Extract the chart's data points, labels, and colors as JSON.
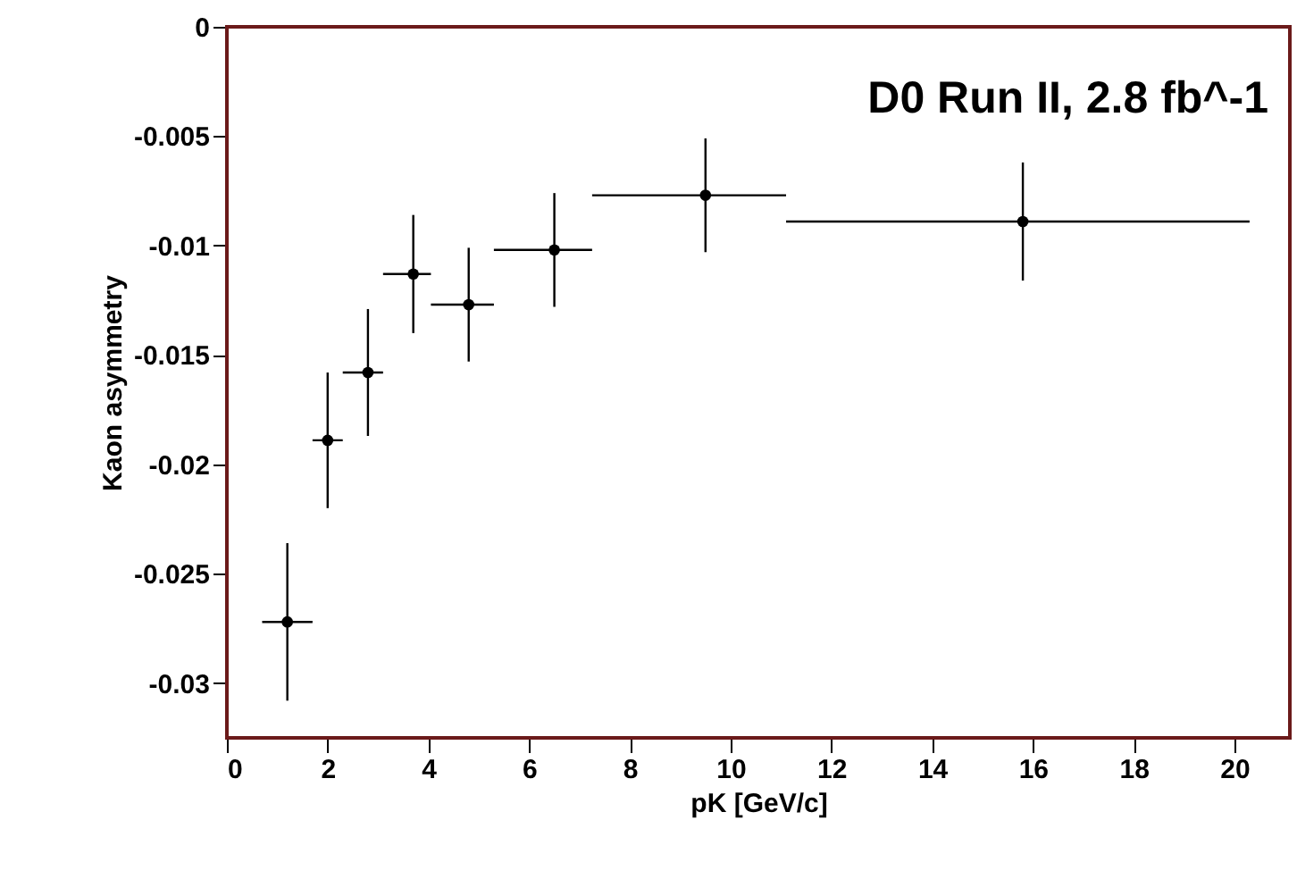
{
  "chart_data": {
    "type": "scatter",
    "xlabel": "pK  [GeV/c]",
    "ylabel": "Kaon asymmetry",
    "annotations": [
      "D0 Run II, 2.8 fb^-1"
    ],
    "x": [
      1.2,
      2.0,
      2.8,
      3.7,
      4.8,
      6.5,
      9.5,
      15.8
    ],
    "series": [
      {
        "color": "#000000",
        "values": [
          -0.0272,
          -0.0189,
          -0.0158,
          -0.0113,
          -0.0127,
          -0.0102,
          -0.0077,
          -0.0089
        ],
        "errors": [
          0.0036,
          0.0031,
          0.0029,
          0.0027,
          0.0026,
          0.0026,
          0.0026,
          0.0027
        ],
        "xerrors": [
          [
            0.7,
            1.7
          ],
          [
            1.7,
            2.3
          ],
          [
            2.3,
            3.1
          ],
          [
            3.1,
            4.05
          ],
          [
            4.05,
            5.3
          ],
          [
            5.3,
            7.25
          ],
          [
            7.25,
            11.1
          ],
          [
            11.1,
            20.3
          ]
        ]
      }
    ],
    "xlim": [
      0,
      21.1
    ],
    "xticks": [
      0,
      2,
      4,
      6,
      8,
      10,
      12,
      14,
      16,
      18,
      20
    ],
    "ylim": [
      -0.0325,
      0
    ],
    "yticks": [
      0,
      -0.005,
      -0.01,
      -0.015,
      -0.02,
      -0.025,
      -0.03
    ],
    "marker": "circle",
    "grid": false
  }
}
